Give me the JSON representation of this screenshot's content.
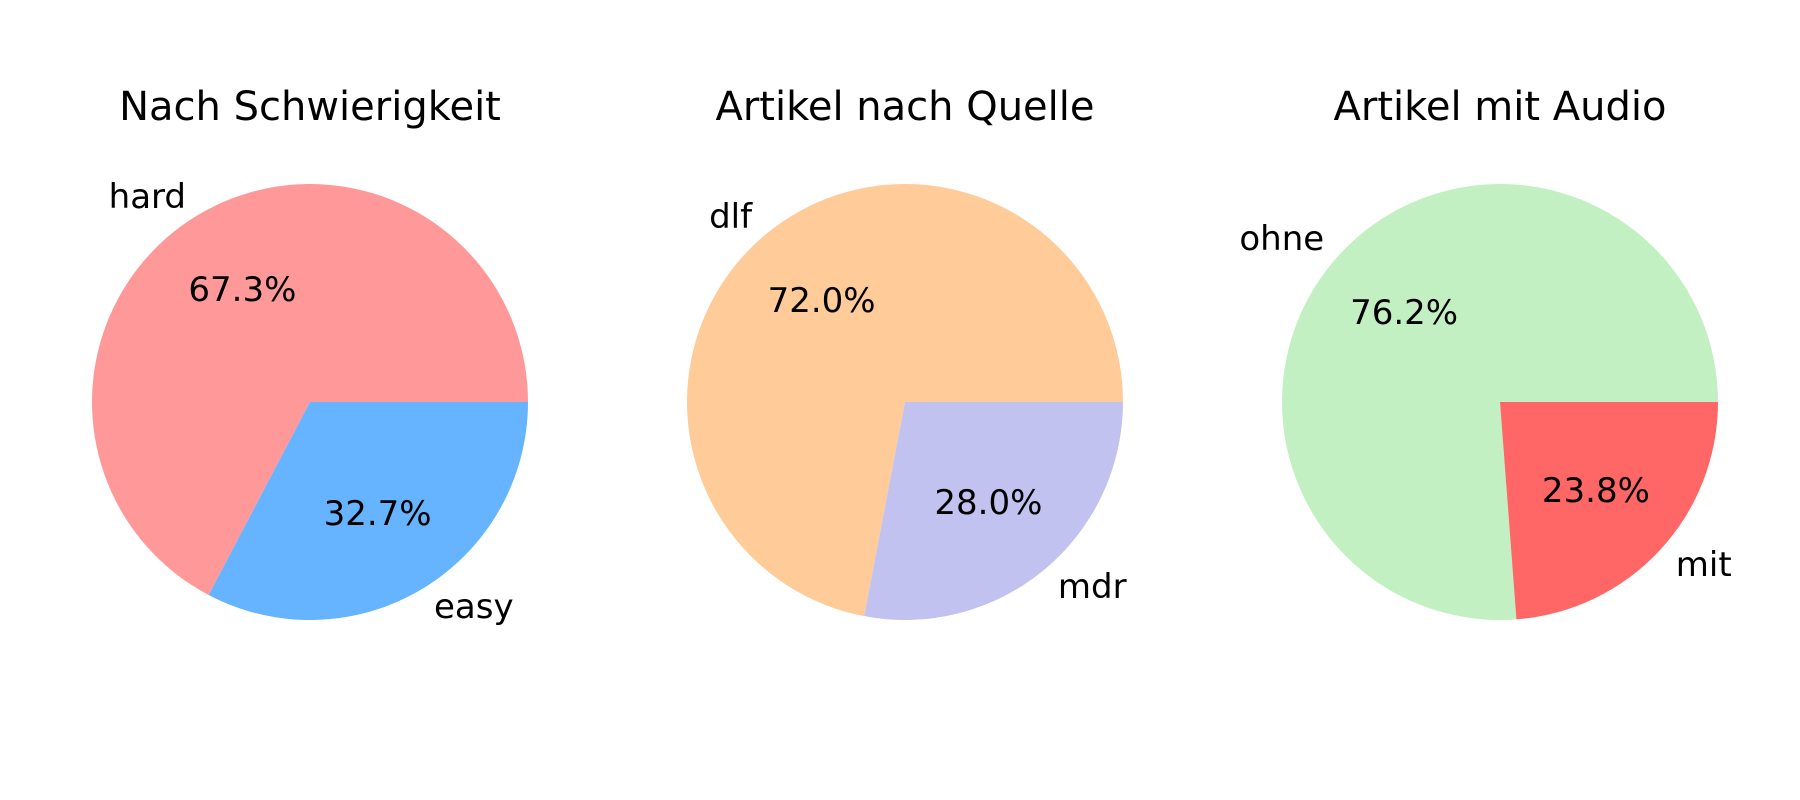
{
  "chart_data": [
    {
      "type": "pie",
      "title": "Nach Schwierigkeit",
      "slices": [
        {
          "label": "hard",
          "value": 67.3,
          "pct_text": "67.3%",
          "color": "#ff9999"
        },
        {
          "label": "easy",
          "value": 32.7,
          "pct_text": "32.7%",
          "color": "#66b3ff"
        }
      ]
    },
    {
      "type": "pie",
      "title": "Artikel nach Quelle",
      "slices": [
        {
          "label": "dlf",
          "value": 72.0,
          "pct_text": "72.0%",
          "color": "#ffcc99"
        },
        {
          "label": "mdr",
          "value": 28.0,
          "pct_text": "28.0%",
          "color": "#c2c2f0"
        }
      ]
    },
    {
      "type": "pie",
      "title": "Artikel mit Audio",
      "slices": [
        {
          "label": "ohne",
          "value": 76.2,
          "pct_text": "76.2%",
          "color": "#c2f0c2"
        },
        {
          "label": "mit",
          "value": 23.8,
          "pct_text": "23.8%",
          "color": "#ff6666"
        }
      ]
    }
  ]
}
